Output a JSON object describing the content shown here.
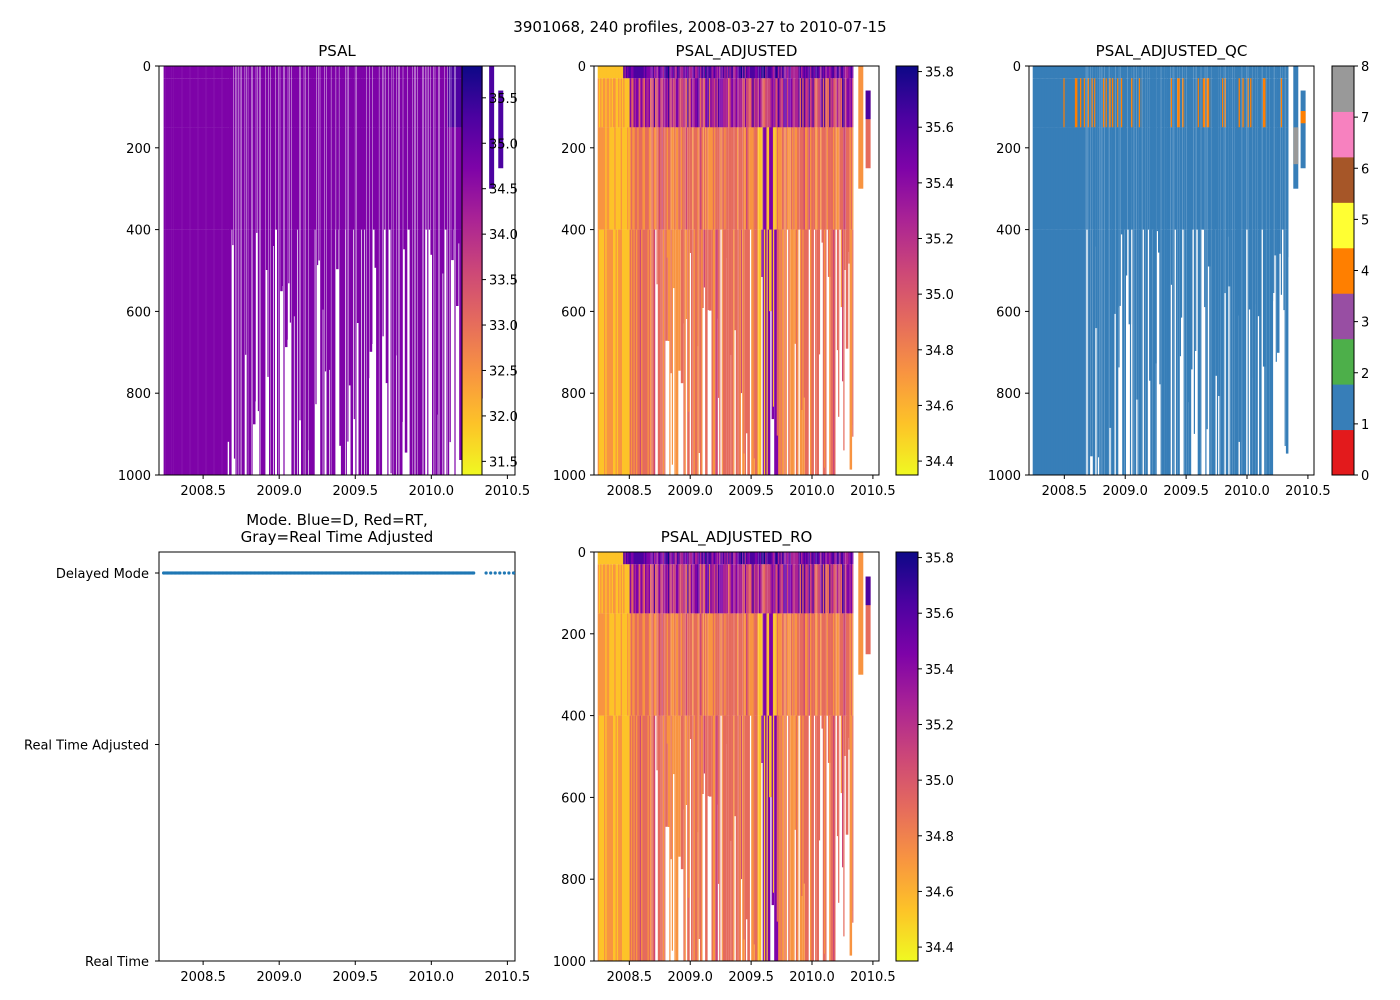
{
  "figure": {
    "suptitle": "3901068, 240 profiles, 2008-03-27 to 2010-07-15"
  },
  "chart_data": [
    {
      "type": "heatmap",
      "title": "PSAL",
      "xlabel": "",
      "ylabel": "",
      "xlim": [
        2008.21,
        2010.55
      ],
      "ylim": [
        1000,
        0
      ],
      "xticks": [
        "2008.5",
        "2009.0",
        "2009.5",
        "2010.0",
        "2010.5"
      ],
      "yticks": [
        "0",
        "200",
        "400",
        "600",
        "800",
        "1000"
      ],
      "colormap": "plasma_r",
      "colorbar": {
        "range": [
          31.35,
          35.85
        ],
        "ticks": [
          "31.5",
          "32.0",
          "32.5",
          "33.0",
          "33.5",
          "34.0",
          "34.5",
          "35.0",
          "35.5"
        ]
      }
    },
    {
      "type": "heatmap",
      "title": "PSAL_ADJUSTED",
      "xlabel": "",
      "ylabel": "",
      "xlim": [
        2008.21,
        2010.55
      ],
      "ylim": [
        1000,
        0
      ],
      "xticks": [
        "2008.5",
        "2009.0",
        "2009.5",
        "2010.0",
        "2010.5"
      ],
      "yticks": [
        "0",
        "200",
        "400",
        "600",
        "800",
        "1000"
      ],
      "colormap": "plasma_r",
      "colorbar": {
        "range": [
          34.35,
          35.82
        ],
        "ticks": [
          "34.4",
          "34.6",
          "34.8",
          "35.0",
          "35.2",
          "35.4",
          "35.6",
          "35.8"
        ]
      }
    },
    {
      "type": "heatmap",
      "title": "PSAL_ADJUSTED_QC",
      "xlabel": "",
      "ylabel": "",
      "xlim": [
        2008.21,
        2010.55
      ],
      "ylim": [
        1000,
        0
      ],
      "xticks": [
        "2008.5",
        "2009.0",
        "2009.5",
        "2010.0",
        "2010.5"
      ],
      "yticks": [
        "0",
        "200",
        "400",
        "600",
        "800",
        "1000"
      ],
      "colormap": "categorical",
      "colorbar": {
        "range": [
          0,
          8
        ],
        "ticks": [
          "0",
          "1",
          "2",
          "3",
          "4",
          "5",
          "6",
          "7",
          "8"
        ],
        "categories": [
          "0",
          "1",
          "2",
          "3",
          "4",
          "5",
          "6",
          "7",
          "8"
        ],
        "colors": [
          "#e31a1c",
          "#377eb8",
          "#4daf4a",
          "#984ea3",
          "#ff7f00",
          "#ffff33",
          "#a65628",
          "#f781bf",
          "#999999"
        ]
      }
    },
    {
      "type": "scatter",
      "title": "Mode. Blue=D, Red=RT,\nGray=Real Time Adjusted",
      "title_lines": [
        "Mode. Blue=D, Red=RT,",
        "Gray=Real Time Adjusted"
      ],
      "xlabel": "",
      "ylabel": "",
      "xlim": [
        2008.21,
        2010.55
      ],
      "xticks": [
        "2008.5",
        "2009.0",
        "2009.5",
        "2010.0",
        "2010.5"
      ],
      "yticks": [
        "Real Time",
        "Real Time Adjusted",
        "Delayed Mode"
      ],
      "series": [
        {
          "name": "Delayed Mode",
          "x_range": [
            2008.24,
            2010.54
          ],
          "y": "Delayed Mode",
          "color": "#1f77b4"
        }
      ]
    },
    {
      "type": "heatmap",
      "title": "PSAL_ADJUSTED_RO",
      "xlabel": "",
      "ylabel": "",
      "xlim": [
        2008.21,
        2010.55
      ],
      "ylim": [
        1000,
        0
      ],
      "xticks": [
        "2008.5",
        "2009.0",
        "2009.5",
        "2010.0",
        "2010.5"
      ],
      "yticks": [
        "0",
        "200",
        "400",
        "600",
        "800",
        "1000"
      ],
      "colormap": "plasma_r",
      "colorbar": {
        "range": [
          34.35,
          35.82
        ],
        "ticks": [
          "34.4",
          "34.6",
          "34.8",
          "35.0",
          "35.2",
          "35.4",
          "35.6",
          "35.8"
        ]
      }
    }
  ]
}
